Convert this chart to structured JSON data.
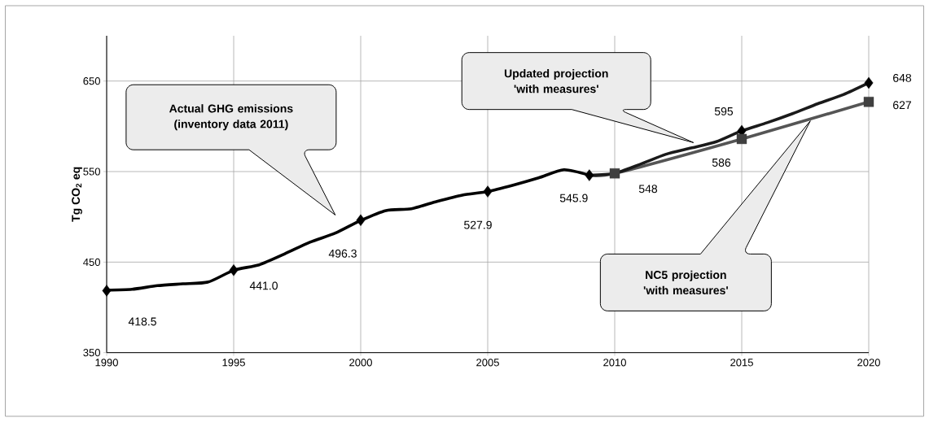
{
  "chart_data": {
    "type": "line",
    "ylabel": "Tg CO$_{2}$ eq",
    "xlim": [
      1990,
      2020
    ],
    "ylim": [
      350,
      700
    ],
    "xticks": [
      1990,
      1995,
      2000,
      2005,
      2010,
      2015,
      2020
    ],
    "yticks": [
      350,
      450,
      550,
      650
    ],
    "grid": true,
    "annotations": [
      "Actual GHG emissions (inventory data 2011)",
      "Updated projection 'with measures'",
      "NC5 projection 'with measures'"
    ],
    "series": [
      {
        "x": [
          1990,
          1991,
          1992,
          1993,
          1994,
          1995,
          1996,
          1997,
          1998,
          1999,
          2000,
          2001,
          2002,
          2003,
          2004,
          2005,
          2006,
          2007,
          2008,
          2009
        ],
        "values": [
          419,
          420,
          424,
          426,
          428,
          441,
          447,
          459,
          472,
          482,
          496,
          507,
          509,
          517,
          524,
          528,
          535,
          543,
          552,
          546
        ],
        "color": "#000000",
        "marker": "none"
      },
      {
        "x": [
          2009,
          2010,
          2015,
          2020
        ],
        "values": [
          546,
          548,
          586,
          627
        ],
        "color": "#555555",
        "marker": "none"
      },
      {
        "x": [
          2009,
          2010,
          2011,
          2012,
          2013,
          2014,
          2015,
          2016,
          2017,
          2018,
          2019,
          2020
        ],
        "values": [
          546,
          548,
          558,
          569,
          576,
          583,
          595,
          604,
          614,
          625,
          635,
          648
        ],
        "color": "#1a1a1a",
        "marker": "none"
      },
      {
        "type": "scatter",
        "x": [
          1990,
          1995,
          2000,
          2005,
          2009,
          2015,
          2020
        ],
        "values": [
          418.5,
          441.0,
          496.3,
          527.9,
          545.9,
          595,
          648
        ],
        "value_labels": [
          "418.5",
          "441.0",
          "496.3",
          "527.9",
          "545.9",
          "595",
          "648"
        ],
        "color": "#000000",
        "marker": "diamond"
      },
      {
        "type": "scatter",
        "x": [
          2010,
          2015,
          2020
        ],
        "values": [
          548,
          586,
          627
        ],
        "value_labels": [
          "548",
          "586",
          "627"
        ],
        "color": "#404040",
        "marker": "square"
      }
    ]
  }
}
